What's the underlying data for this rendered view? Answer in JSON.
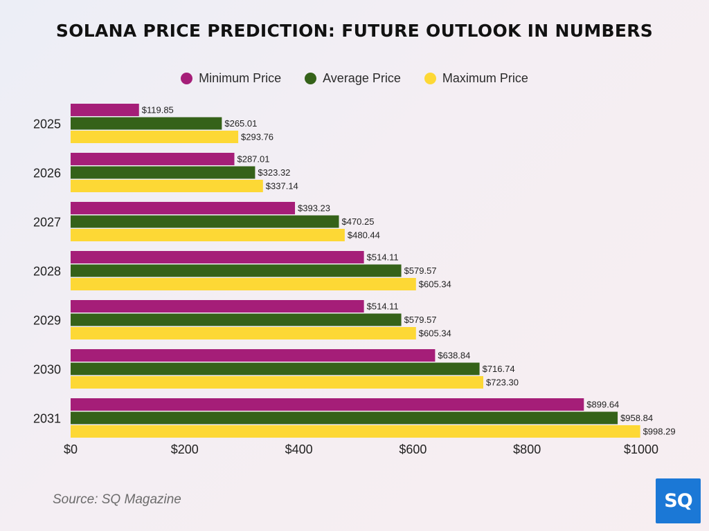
{
  "chart_data": {
    "type": "bar",
    "orientation": "horizontal",
    "title": "SOLANA PRICE PREDICTION: FUTURE OUTLOOK IN NUMBERS",
    "categories": [
      "2025",
      "2026",
      "2027",
      "2028",
      "2029",
      "2030",
      "2031"
    ],
    "series": [
      {
        "name": "Minimum Price",
        "color": "#a51e78",
        "values": [
          119.85,
          287.01,
          393.23,
          514.11,
          514.11,
          638.84,
          899.64
        ],
        "labels": [
          "$119.85",
          "$287.01",
          "$393.23",
          "$514.11",
          "$514.11",
          "$638.84",
          "$899.64"
        ]
      },
      {
        "name": "Average Price",
        "color": "#356219",
        "values": [
          265.01,
          323.32,
          470.25,
          579.57,
          579.57,
          716.74,
          958.84
        ],
        "labels": [
          "$265.01",
          "$323.32",
          "$470.25",
          "$579.57",
          "$579.57",
          "$716.74",
          "$958.84"
        ]
      },
      {
        "name": "Maximum Price",
        "color": "#fdd835",
        "values": [
          293.76,
          337.14,
          480.44,
          605.34,
          605.34,
          723.3,
          998.29
        ],
        "labels": [
          "$293.76",
          "$337.14",
          "$480.44",
          "$605.34",
          "$605.34",
          "$723.30",
          "$998.29"
        ]
      }
    ],
    "xticks": [
      "$0",
      "$200",
      "$400",
      "$600",
      "$800",
      "$1000"
    ],
    "xlim": [
      0,
      1000
    ],
    "grid": false,
    "legend_position": "top-center"
  },
  "source": "Source: SQ Magazine",
  "logo": {
    "text": "SQ",
    "color": "#1b78d6"
  }
}
